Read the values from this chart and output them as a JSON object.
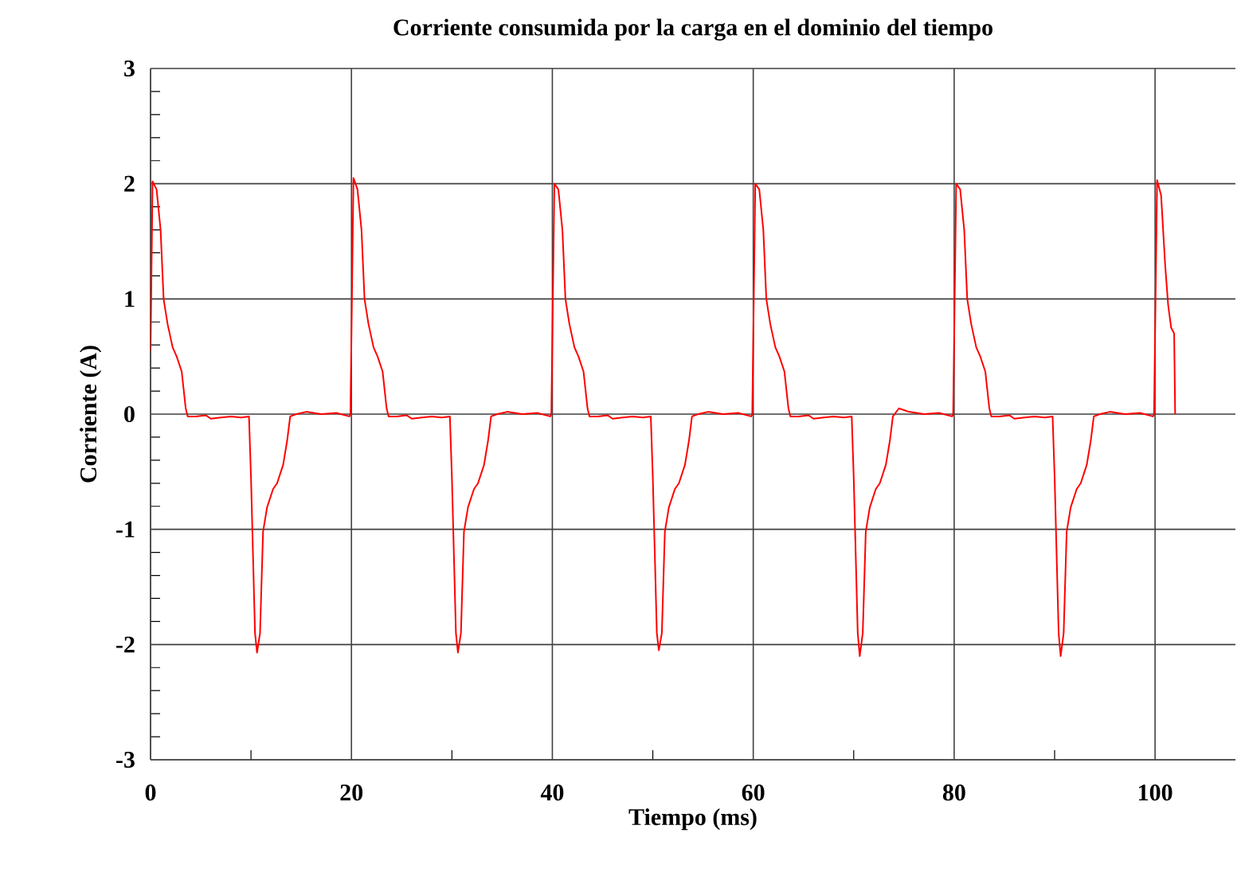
{
  "chart_data": {
    "type": "line",
    "title": "Corriente consumida por la carga en el dominio del tiempo",
    "xlabel": "Tiempo (ms)",
    "ylabel": "Corriente (A)",
    "xlim": [
      0,
      108
    ],
    "ylim": [
      -3,
      3
    ],
    "xticks": [
      0,
      20,
      40,
      60,
      80,
      100
    ],
    "yticks": [
      -3,
      -2,
      -1,
      0,
      1,
      2,
      3
    ],
    "grid": true,
    "series": [
      {
        "color": "#ff0000",
        "x": [
          0,
          0.2,
          0.6,
          1.0,
          1.3,
          1.7,
          2.2,
          2.6,
          3.1,
          3.5,
          3.7,
          4.5,
          5.5,
          6.0,
          7.0,
          8.0,
          9.0,
          9.8,
          10.0,
          10.4,
          10.6,
          10.9,
          11.2,
          11.6,
          12.2,
          12.6,
          13.2,
          13.6,
          13.9,
          14.5,
          15.5,
          17.0,
          18.5,
          19.8,
          19.9,
          20.2,
          20.6,
          21.0,
          21.3,
          21.7,
          22.2,
          22.6,
          23.1,
          23.5,
          23.7,
          24.5,
          25.5,
          26.0,
          27.0,
          28.0,
          29.0,
          29.8,
          30.0,
          30.4,
          30.6,
          30.9,
          31.2,
          31.6,
          32.2,
          32.6,
          33.2,
          33.6,
          33.9,
          34.5,
          35.5,
          37.0,
          38.5,
          39.8,
          39.9,
          40.2,
          40.6,
          41.0,
          41.3,
          41.7,
          42.2,
          42.6,
          43.1,
          43.5,
          43.7,
          44.5,
          45.5,
          46.0,
          47.0,
          48.0,
          49.0,
          49.8,
          50.0,
          50.4,
          50.6,
          50.9,
          51.2,
          51.6,
          52.2,
          52.6,
          53.2,
          53.6,
          53.9,
          54.5,
          55.5,
          57.0,
          58.5,
          59.8,
          59.9,
          60.2,
          60.6,
          61.0,
          61.3,
          61.7,
          62.2,
          62.6,
          63.1,
          63.5,
          63.7,
          64.5,
          65.5,
          66.0,
          67.0,
          68.0,
          69.0,
          69.8,
          70.0,
          70.4,
          70.6,
          70.9,
          71.2,
          71.6,
          72.2,
          72.6,
          73.2,
          73.6,
          73.9,
          74.5,
          75.5,
          77.0,
          78.5,
          79.8,
          79.9,
          80.2,
          80.6,
          81.0,
          81.3,
          81.7,
          82.2,
          82.6,
          83.1,
          83.5,
          83.7,
          84.5,
          85.5,
          86.0,
          87.0,
          88.0,
          89.0,
          89.8,
          90.0,
          90.4,
          90.6,
          90.9,
          91.2,
          91.6,
          92.2,
          92.6,
          93.2,
          93.6,
          93.9,
          94.5,
          95.5,
          97.0,
          98.5,
          99.8,
          99.9,
          100.2,
          100.6,
          101.0,
          101.3,
          101.6,
          101.9,
          102.0
        ],
        "values": [
          0.55,
          2.02,
          1.95,
          1.6,
          1.0,
          0.78,
          0.58,
          0.5,
          0.37,
          0.05,
          -0.02,
          -0.02,
          -0.01,
          -0.04,
          -0.03,
          -0.02,
          -0.03,
          -0.02,
          -0.55,
          -1.9,
          -2.07,
          -1.9,
          -1.02,
          -0.81,
          -0.65,
          -0.6,
          -0.44,
          -0.23,
          -0.02,
          0.0,
          0.02,
          0.0,
          0.01,
          -0.02,
          0.0,
          2.05,
          1.95,
          1.6,
          1.0,
          0.78,
          0.58,
          0.5,
          0.37,
          0.05,
          -0.02,
          -0.02,
          -0.01,
          -0.04,
          -0.03,
          -0.02,
          -0.03,
          -0.02,
          -0.55,
          -1.9,
          -2.07,
          -1.9,
          -1.02,
          -0.81,
          -0.65,
          -0.6,
          -0.44,
          -0.23,
          -0.02,
          0.0,
          0.02,
          0.0,
          0.01,
          -0.02,
          0.0,
          2.0,
          1.95,
          1.6,
          1.0,
          0.78,
          0.58,
          0.5,
          0.37,
          0.05,
          -0.02,
          -0.02,
          -0.01,
          -0.04,
          -0.03,
          -0.02,
          -0.03,
          -0.02,
          -0.55,
          -1.9,
          -2.05,
          -1.9,
          -1.02,
          -0.81,
          -0.65,
          -0.6,
          -0.44,
          -0.23,
          -0.02,
          0.0,
          0.02,
          0.0,
          0.01,
          -0.02,
          0.0,
          2.0,
          1.95,
          1.6,
          1.0,
          0.78,
          0.58,
          0.5,
          0.37,
          0.05,
          -0.02,
          -0.02,
          -0.01,
          -0.04,
          -0.03,
          -0.02,
          -0.03,
          -0.02,
          -0.55,
          -1.9,
          -2.1,
          -1.9,
          -1.02,
          -0.81,
          -0.65,
          -0.6,
          -0.44,
          -0.23,
          -0.02,
          0.05,
          0.02,
          0.0,
          0.01,
          -0.02,
          0.0,
          2.0,
          1.95,
          1.6,
          1.0,
          0.78,
          0.58,
          0.5,
          0.37,
          0.05,
          -0.02,
          -0.02,
          -0.01,
          -0.04,
          -0.03,
          -0.02,
          -0.03,
          -0.02,
          -0.55,
          -1.9,
          -2.1,
          -1.9,
          -1.02,
          -0.81,
          -0.65,
          -0.6,
          -0.44,
          -0.23,
          -0.02,
          0.0,
          0.02,
          0.0,
          0.01,
          -0.02,
          0.0,
          2.03,
          1.9,
          1.3,
          0.95,
          0.75,
          0.7,
          0.0
        ]
      }
    ]
  }
}
